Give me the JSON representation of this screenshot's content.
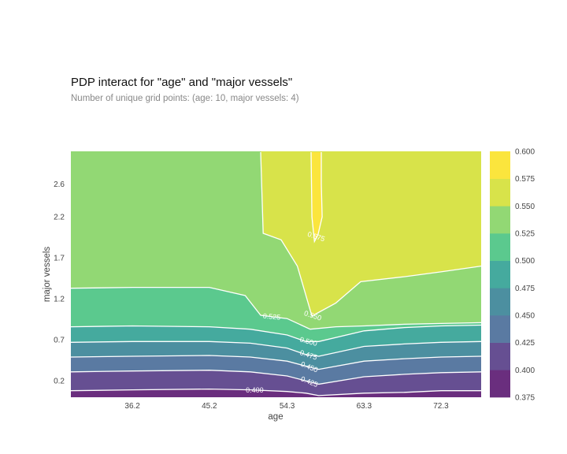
{
  "title": "PDP interact for \"age\" and \"major vessels\"",
  "subtitle": "Number of unique grid points: (age: 10, major vessels: 4)",
  "chart_data": {
    "type": "contour",
    "xlabel": "age",
    "ylabel": "major vessels",
    "x_ticks": [
      "36.2",
      "45.2",
      "54.3",
      "63.3",
      "72.3"
    ],
    "y_ticks": [
      "0.2",
      "0.7",
      "1.2",
      "1.7",
      "2.2",
      "2.6"
    ],
    "xlim": [
      29,
      77
    ],
    "ylim": [
      0,
      3
    ],
    "levels": [
      0.375,
      0.4,
      0.425,
      0.45,
      0.475,
      0.5,
      0.525,
      0.55,
      0.575,
      0.6
    ],
    "colorbar_ticks": [
      "0.600",
      "0.575",
      "0.550",
      "0.525",
      "0.500",
      "0.475",
      "0.450",
      "0.425",
      "0.400",
      "0.375"
    ],
    "colors": [
      "#6a2e7e",
      "#664f92",
      "#5a7aa2",
      "#4c8fa0",
      "#45aa9e",
      "#5bc98e",
      "#92d874",
      "#d8e34a",
      "#fbe53d"
    ],
    "contour_labels": [
      "0.400",
      "0.425",
      "0.450",
      "0.475",
      "0.500",
      "0.525",
      "0.550",
      "0.575"
    ],
    "contours": [
      {
        "level": 0.4,
        "x": [
          29,
          36.2,
          45.2,
          50,
          54.3,
          56.5,
          58,
          63.3,
          68,
          72.3,
          77
        ],
        "y": [
          0.08,
          0.09,
          0.1,
          0.09,
          0.07,
          0.05,
          0.02,
          0.05,
          0.06,
          0.08,
          0.08
        ]
      },
      {
        "level": 0.425,
        "x": [
          29,
          36.2,
          45.2,
          50,
          54.3,
          56.5,
          58,
          63.3,
          68,
          72.3,
          77
        ],
        "y": [
          0.31,
          0.32,
          0.33,
          0.31,
          0.26,
          0.2,
          0.16,
          0.25,
          0.28,
          0.3,
          0.31
        ]
      },
      {
        "level": 0.45,
        "x": [
          29,
          36.2,
          45.2,
          50,
          54.3,
          56.5,
          58,
          63.3,
          68,
          72.3,
          77
        ],
        "y": [
          0.49,
          0.5,
          0.51,
          0.49,
          0.44,
          0.38,
          0.34,
          0.44,
          0.47,
          0.49,
          0.5
        ]
      },
      {
        "level": 0.475,
        "x": [
          29,
          36.2,
          45.2,
          50,
          54.3,
          56.5,
          58,
          63.3,
          68,
          72.3,
          77
        ],
        "y": [
          0.67,
          0.68,
          0.68,
          0.66,
          0.6,
          0.52,
          0.5,
          0.62,
          0.65,
          0.67,
          0.68
        ]
      },
      {
        "level": 0.5,
        "x": [
          29,
          36.2,
          45.2,
          50,
          54.3,
          56.5,
          58,
          63.3,
          68,
          72.3,
          77
        ],
        "y": [
          0.86,
          0.87,
          0.86,
          0.83,
          0.76,
          0.68,
          0.68,
          0.81,
          0.85,
          0.87,
          0.88
        ]
      },
      {
        "level": 0.525,
        "x": [
          29,
          36.2,
          45.2,
          49.4,
          51.2,
          54.3,
          57,
          60,
          63.3,
          68,
          72.3,
          77
        ],
        "y": [
          1.33,
          1.34,
          1.34,
          1.24,
          1.0,
          0.96,
          0.83,
          0.86,
          0.87,
          0.89,
          0.9,
          0.91
        ]
      },
      {
        "level": 0.55,
        "x": [
          51.2,
          51.5,
          53.6,
          55.5,
          57.2,
          60,
          62.9,
          68,
          72.3,
          77
        ],
        "y": [
          2.99,
          2.0,
          1.92,
          1.6,
          0.99,
          1.15,
          1.41,
          1.47,
          1.53,
          1.6
        ]
      },
      {
        "level": 0.575,
        "x": [
          57.1,
          57.2,
          57.5,
          57.9,
          58.4,
          58.3,
          58.3
        ],
        "y": [
          2.99,
          2.2,
          1.9,
          1.98,
          2.2,
          2.6,
          2.99
        ]
      }
    ]
  }
}
